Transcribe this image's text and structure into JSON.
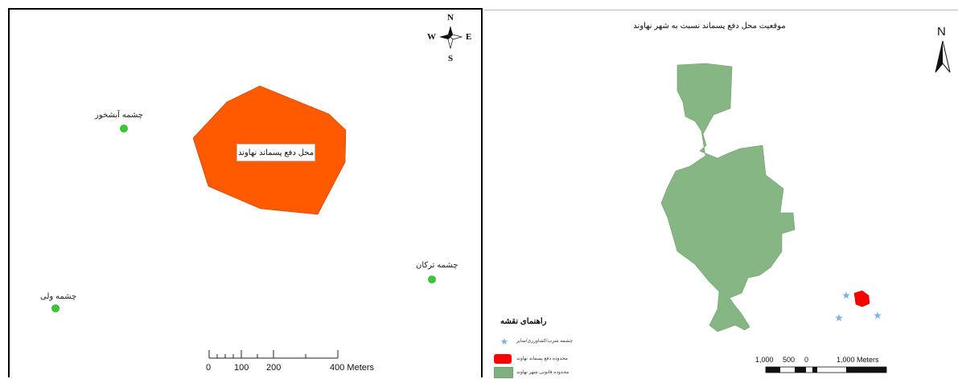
{
  "left_map": {
    "waste_site_label": "محل دفع پسماند نهاوند",
    "springs": [
      {
        "name": "چشمه آبشخور"
      },
      {
        "name": "چشمه ترکان"
      },
      {
        "name": "چشمه ولی"
      }
    ],
    "compass": {
      "n": "N",
      "s": "S",
      "e": "E",
      "w": "W"
    },
    "scale_bar": {
      "ticks": [
        "0",
        "100",
        "200",
        "400 Meters"
      ]
    },
    "colors": {
      "site_fill": "#ff5a00",
      "spring_fill": "#33cc33"
    }
  },
  "right_map": {
    "title": "موقعیت محل دفع پسماند نسبت به شهر نهاوند",
    "north_label": "N",
    "legend": {
      "title": "راهنمای نقشه",
      "items": [
        {
          "label": "چشمه شرب/کشاورزی/سایر",
          "symbol": "star-icon"
        },
        {
          "label": "محدوده دفع پسماند نهاوند",
          "color": "#ff0000"
        },
        {
          "label": "محدوده قانونی شهر نهاوند",
          "color": "#7fb07f"
        }
      ]
    },
    "scale_bar": {
      "ticks": [
        "1,000",
        "500",
        "0",
        "1,000 Meters"
      ]
    },
    "colors": {
      "city_fill": "#85b683",
      "site_fill": "#ff0000",
      "star_color": "#7fb3e6"
    }
  }
}
